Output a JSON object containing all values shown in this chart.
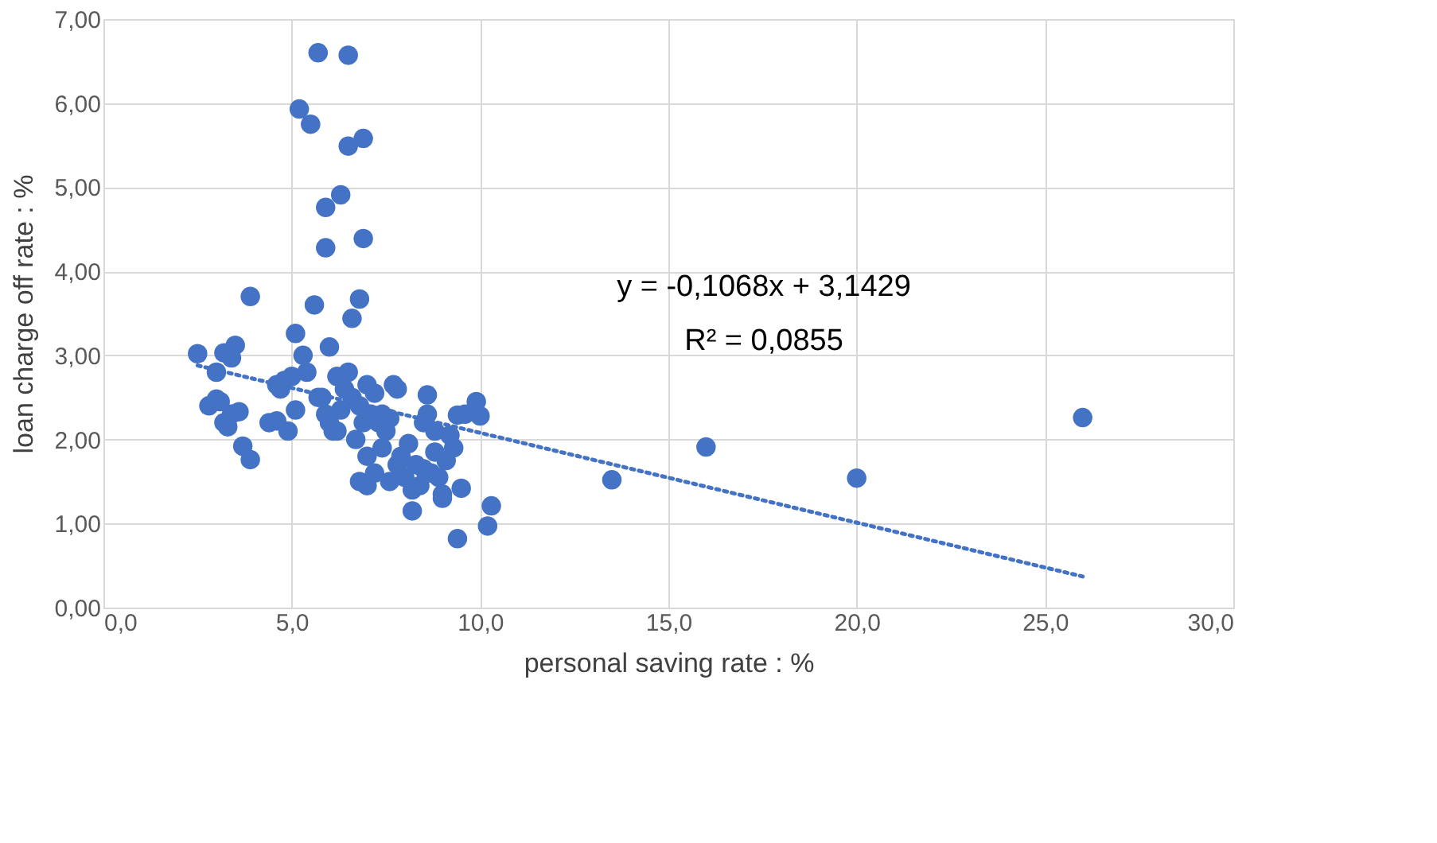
{
  "chart_data": {
    "type": "scatter",
    "xlabel": "personal saving rate : %",
    "ylabel": "loan charge off rate : %",
    "xlim": [
      0,
      30
    ],
    "ylim": [
      0,
      7
    ],
    "xticks": [
      {
        "value": 0,
        "label": "0,0"
      },
      {
        "value": 5,
        "label": "5,0"
      },
      {
        "value": 10,
        "label": "10,0"
      },
      {
        "value": 15,
        "label": "15,0"
      },
      {
        "value": 20,
        "label": "20,0"
      },
      {
        "value": 25,
        "label": "25,0"
      },
      {
        "value": 30,
        "label": "30,0"
      }
    ],
    "yticks": [
      {
        "value": 0,
        "label": "0,00"
      },
      {
        "value": 1,
        "label": "1,00"
      },
      {
        "value": 2,
        "label": "2,00"
      },
      {
        "value": 3,
        "label": "3,00"
      },
      {
        "value": 4,
        "label": "4,00"
      },
      {
        "value": 5,
        "label": "5,00"
      },
      {
        "value": 6,
        "label": "6,00"
      },
      {
        "value": 7,
        "label": "7,00"
      }
    ],
    "grid": true,
    "annotations": [
      "y = -0,1068x + 3,1429",
      "R² = 0,0855"
    ],
    "series": [
      {
        "color": "#4472c4",
        "marker": "circle",
        "x": [
          5.7,
          6.5,
          5.2,
          5.5,
          6.5,
          6.9,
          6.3,
          5.9,
          5.9,
          6.9,
          3.9,
          5.6,
          6.8,
          6.6,
          5.1,
          2.5,
          3.0,
          3.2,
          3.5,
          3.4,
          6.0,
          5.3,
          13.5,
          16.0,
          20.0,
          26.0,
          10.3,
          10.2,
          9.4,
          8.2,
          3.9,
          3.7,
          9.5,
          9.9,
          10.0,
          9.4,
          8.6,
          2.8,
          3.0,
          3.2,
          3.3,
          3.6,
          3.1,
          3.4,
          4.4,
          4.6,
          4.8,
          4.9,
          5.1,
          4.7,
          5.0,
          4.6,
          5.4,
          5.7,
          5.9,
          6.2,
          6.4,
          6.6,
          6.8,
          7.0,
          7.2,
          7.4,
          7.6,
          7.8,
          6.1,
          6.3,
          6.5,
          6.7,
          6.9,
          7.1,
          7.3,
          7.5,
          6.8,
          7.0,
          7.2,
          7.6,
          7.9,
          8.1,
          8.3,
          8.5,
          8.7,
          8.9,
          9.1,
          9.3,
          8.0,
          8.2,
          8.4,
          8.6,
          8.8,
          9.0,
          7.0,
          7.4,
          7.8,
          8.8,
          9.0,
          9.6,
          6.2,
          6.0,
          5.8,
          7.7,
          8.5,
          9.2
        ],
        "values": [
          6.6,
          6.57,
          5.93,
          5.75,
          5.49,
          5.58,
          4.91,
          4.76,
          4.28,
          4.39,
          3.7,
          3.6,
          3.67,
          3.44,
          3.26,
          3.02,
          2.8,
          3.03,
          3.12,
          2.97,
          3.1,
          3.0,
          1.52,
          1.91,
          1.54,
          2.26,
          1.21,
          0.97,
          0.82,
          1.15,
          1.76,
          1.92,
          1.42,
          2.45,
          2.28,
          2.29,
          2.53,
          2.4,
          2.48,
          2.2,
          2.15,
          2.33,
          2.45,
          2.3,
          2.2,
          2.65,
          2.7,
          2.1,
          2.35,
          2.6,
          2.75,
          2.22,
          2.8,
          2.5,
          2.3,
          2.75,
          2.6,
          2.5,
          2.4,
          2.65,
          2.55,
          2.3,
          2.25,
          2.6,
          2.1,
          2.35,
          2.8,
          2.0,
          2.2,
          2.3,
          2.2,
          2.1,
          1.5,
          1.45,
          1.6,
          1.5,
          1.8,
          1.95,
          1.7,
          1.65,
          1.6,
          1.55,
          1.75,
          1.9,
          1.55,
          1.4,
          1.45,
          2.3,
          2.1,
          1.3,
          1.8,
          1.9,
          1.7,
          1.85,
          1.35,
          2.3,
          2.1,
          2.2,
          2.5,
          2.65,
          2.2,
          2.05
        ]
      },
      {
        "type": "line",
        "color": "#4472c4",
        "line_style": "dotted",
        "x": [
          2.5,
          26.0
        ],
        "values": [
          2.88,
          0.37
        ]
      }
    ]
  }
}
